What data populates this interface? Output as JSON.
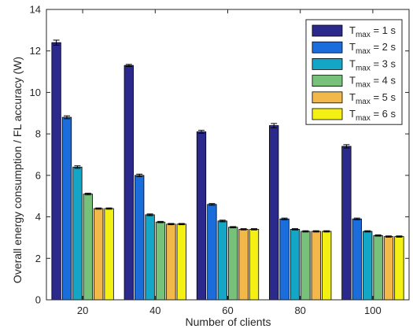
{
  "chart_data": {
    "type": "bar",
    "title": "",
    "xlabel": "Number of clients",
    "ylabel": "Overall energy consumption / FL accuracy (W)",
    "categories": [
      "20",
      "40",
      "60",
      "80",
      "100"
    ],
    "ylim": [
      0,
      14
    ],
    "yticks": [
      "0",
      "2",
      "4",
      "6",
      "8",
      "10",
      "12",
      "14"
    ],
    "grid": false,
    "legend_position": "top-right",
    "error_bars": true,
    "series": [
      {
        "name": "T",
        "sub": "max",
        "rest": " = 1 s",
        "color": "#2b2a8c",
        "values": [
          12.4,
          11.3,
          8.1,
          8.4,
          7.4
        ],
        "errors": [
          0.12,
          0.05,
          0.07,
          0.1,
          0.08
        ]
      },
      {
        "name": "T",
        "sub": "max",
        "rest": " = 2 s",
        "color": "#1a6ddb",
        "values": [
          8.8,
          6.0,
          4.6,
          3.9,
          3.9
        ],
        "errors": [
          0.07,
          0.06,
          0.04,
          0.04,
          0.04
        ]
      },
      {
        "name": "T",
        "sub": "max",
        "rest": " = 3 s",
        "color": "#13a6c7",
        "values": [
          6.4,
          4.1,
          3.8,
          3.4,
          3.3
        ],
        "errors": [
          0.06,
          0.04,
          0.04,
          0.03,
          0.03
        ]
      },
      {
        "name": "T",
        "sub": "max",
        "rest": " = 4 s",
        "color": "#78c17a",
        "values": [
          5.1,
          3.75,
          3.5,
          3.3,
          3.1
        ],
        "errors": [
          0.04,
          0.03,
          0.03,
          0.03,
          0.03
        ]
      },
      {
        "name": "T",
        "sub": "max",
        "rest": " = 5 s",
        "color": "#f2b84a",
        "values": [
          4.4,
          3.65,
          3.4,
          3.3,
          3.05
        ],
        "errors": [
          0.03,
          0.03,
          0.03,
          0.03,
          0.03
        ]
      },
      {
        "name": "T",
        "sub": "max",
        "rest": " = 6 s",
        "color": "#f5f014",
        "values": [
          4.4,
          3.65,
          3.4,
          3.3,
          3.05
        ],
        "errors": [
          0.03,
          0.03,
          0.03,
          0.03,
          0.03
        ]
      }
    ]
  }
}
